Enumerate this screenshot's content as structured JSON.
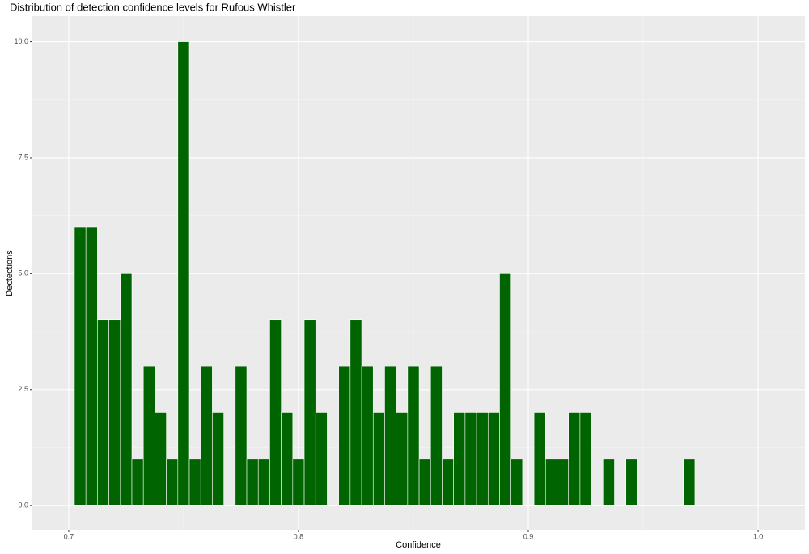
{
  "chart_data": {
    "type": "histogram",
    "title": "Distribution of detection confidence levels for Rufous Whistler",
    "x_label": "Confidence",
    "y_label": "Dectections",
    "bins": [
      0.7025,
      0.7075,
      0.7125,
      0.7175,
      0.7225,
      0.7275,
      0.7325,
      0.7375,
      0.7425,
      0.7475,
      0.7525,
      0.7575,
      0.7625,
      0.7675,
      0.7725,
      0.7775,
      0.7825,
      0.7875,
      0.7925,
      0.7975,
      0.8025,
      0.8075,
      0.8125,
      0.8175,
      0.8225,
      0.8275,
      0.8325,
      0.8375,
      0.8425,
      0.8475,
      0.8525,
      0.8575,
      0.8625,
      0.8675,
      0.8725,
      0.8775,
      0.8825,
      0.8875,
      0.8925,
      0.8975,
      0.9025,
      0.9075,
      0.9125,
      0.9175,
      0.9225,
      0.9275,
      0.9325,
      0.9375,
      0.9425,
      0.9475,
      0.9525,
      0.9575,
      0.9625,
      0.9675,
      0.9725
    ],
    "values": [
      6,
      6,
      4,
      4,
      5,
      1,
      3,
      2,
      1,
      10,
      1,
      3,
      2,
      0,
      3,
      1,
      1,
      4,
      2,
      1,
      4,
      2,
      0,
      3,
      4,
      3,
      2,
      3,
      2,
      3,
      1,
      3,
      1,
      2,
      2,
      2,
      2,
      5,
      1,
      0,
      2,
      1,
      1,
      2,
      2,
      0,
      1,
      0,
      1,
      0,
      0,
      0,
      0,
      1
    ],
    "color": "#006400",
    "xlim": [
      0.6842,
      1.0204
    ],
    "ylim": [
      -0.52,
      10.55
    ],
    "xticks": [
      0.7,
      0.8,
      0.9,
      {
        "value": 1.0,
        "label": "1.0"
      }
    ],
    "yticks": [
      {
        "value": 0,
        "label": "0.0"
      },
      2.5,
      {
        "value": 5,
        "label": "5.0"
      },
      7.5,
      {
        "value": 10,
        "label": "10.0"
      }
    ],
    "grid": true
  }
}
